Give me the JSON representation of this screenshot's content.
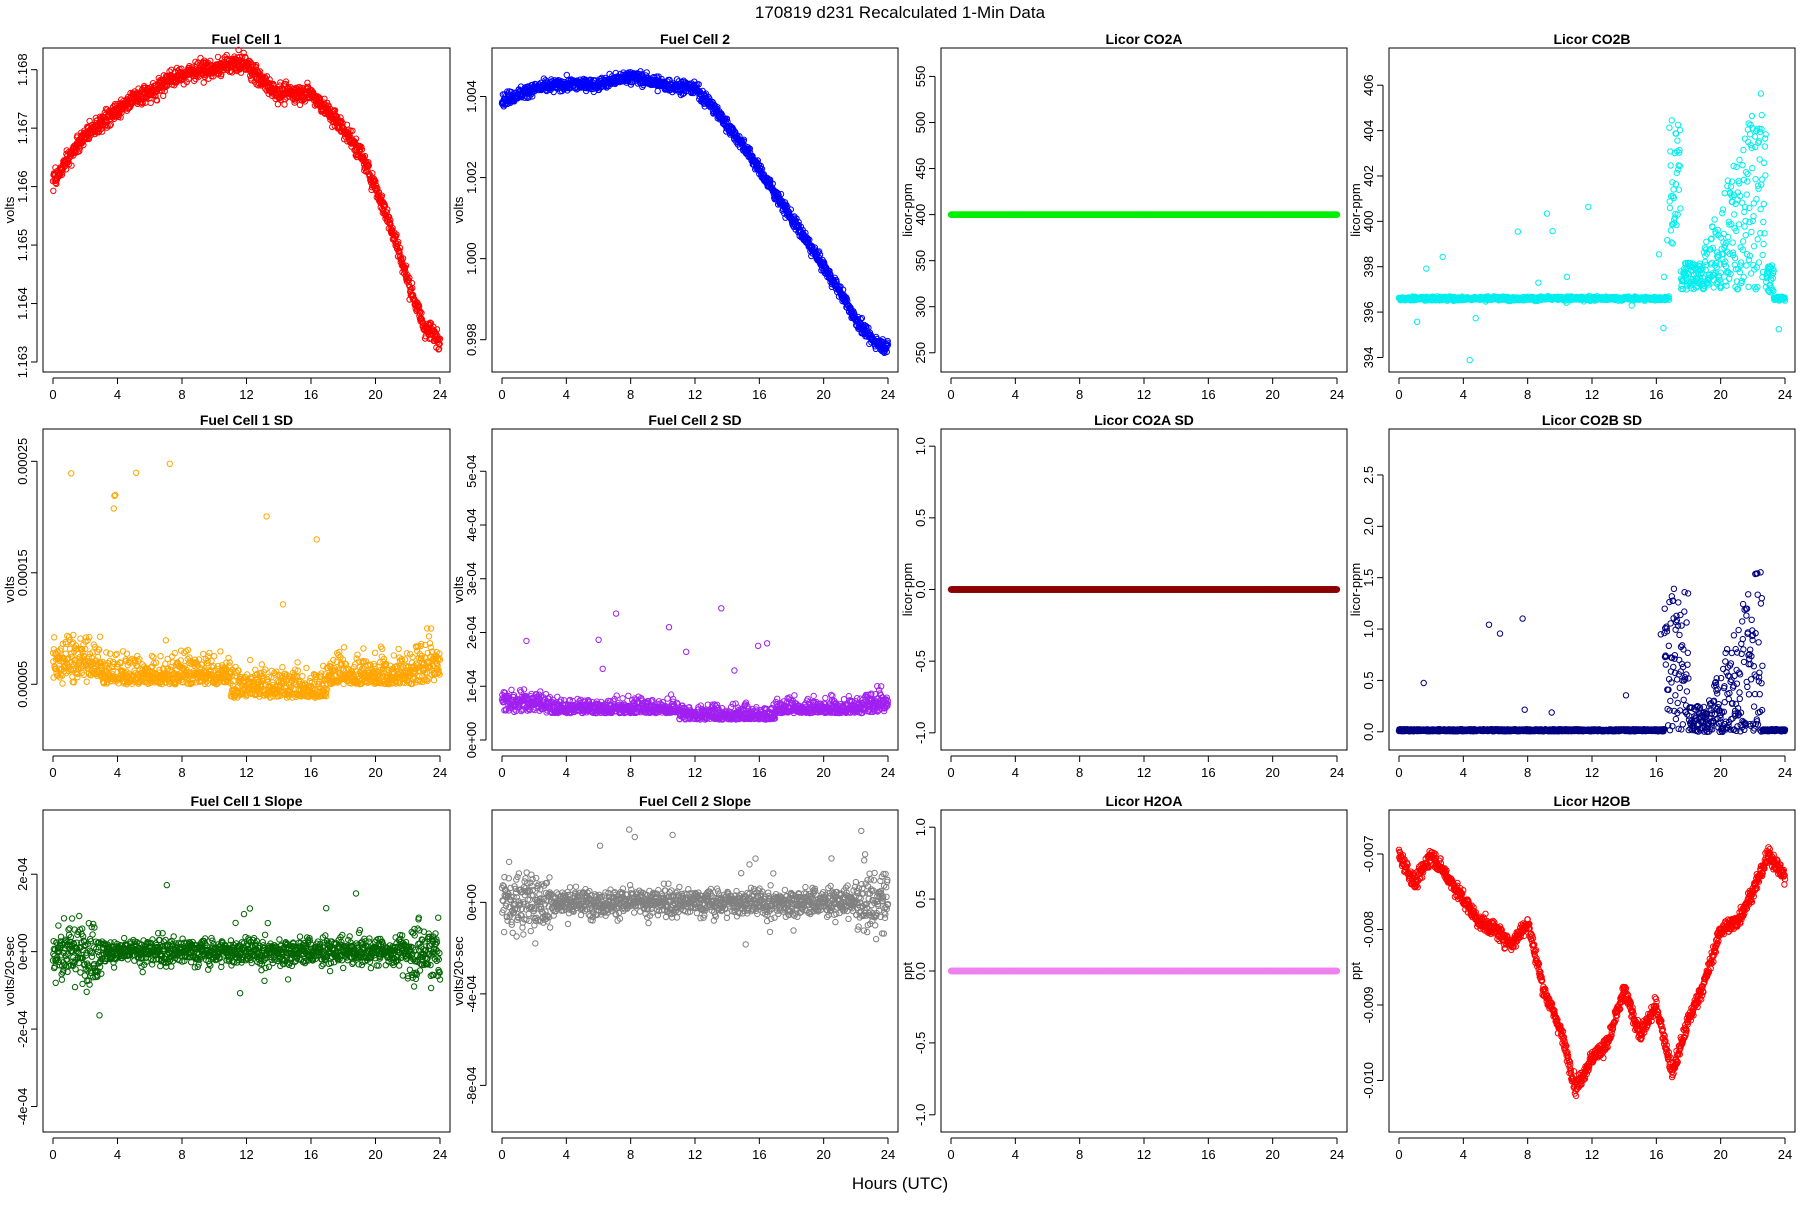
{
  "figure": {
    "title": "170819    d231    Recalculated 1-Min Data",
    "xlabel": "Hours (UTC)"
  },
  "chart_data": [
    {
      "type": "scatter",
      "title": "Fuel Cell 1",
      "ylabel": "volts",
      "color": "#ff0000",
      "xlim": [
        0,
        24
      ],
      "ylim": [
        1.163,
        1.1682
      ],
      "yticks": [
        1.163,
        1.164,
        1.165,
        1.166,
        1.167,
        1.168
      ],
      "ytick_labels": [
        "1.163",
        "1.164",
        "1.165",
        "1.166",
        "1.167",
        "1.168"
      ],
      "shape": {
        "kind": "profile",
        "points": [
          [
            0,
            1.1661
          ],
          [
            1,
            1.1665
          ],
          [
            2,
            1.1669
          ],
          [
            3,
            1.1671
          ],
          [
            4,
            1.1673
          ],
          [
            5,
            1.1675
          ],
          [
            6,
            1.1676
          ],
          [
            7,
            1.1678
          ],
          [
            8,
            1.1679
          ],
          [
            9,
            1.168
          ],
          [
            10,
            1.168
          ],
          [
            11,
            1.1681
          ],
          [
            12,
            1.1681
          ],
          [
            13,
            1.1678
          ],
          [
            14,
            1.1676
          ],
          [
            15,
            1.1676
          ],
          [
            16,
            1.1676
          ],
          [
            17,
            1.1673
          ],
          [
            18,
            1.167
          ],
          [
            19,
            1.1666
          ],
          [
            20,
            1.166
          ],
          [
            21,
            1.1653
          ],
          [
            22,
            1.1644
          ],
          [
            23,
            1.1636
          ],
          [
            24,
            1.1634
          ]
        ],
        "noise": 0.00018,
        "n": 1300
      }
    },
    {
      "type": "scatter",
      "title": "Fuel Cell 2",
      "ylabel": "volts",
      "color": "#0000ff",
      "xlim": [
        0,
        24
      ],
      "ylim": [
        0.99745,
        1.00495
      ],
      "yticks": [
        0.998,
        1.0,
        1.002,
        1.004
      ],
      "ytick_labels": [
        "0.998",
        "1.000",
        "1.002",
        "1.004"
      ],
      "shape": {
        "kind": "profile",
        "points": [
          [
            0,
            1.0039
          ],
          [
            2,
            1.0042
          ],
          [
            4,
            1.0043
          ],
          [
            6,
            1.0043
          ],
          [
            8,
            1.0045
          ],
          [
            10,
            1.0043
          ],
          [
            12,
            1.0042
          ],
          [
            13,
            1.0038
          ],
          [
            14,
            1.0033
          ],
          [
            15,
            1.0028
          ],
          [
            16,
            1.0022
          ],
          [
            17,
            1.0016
          ],
          [
            18,
            1.001
          ],
          [
            19,
            1.0004
          ],
          [
            20,
            0.9998
          ],
          [
            21,
            0.9992
          ],
          [
            22,
            0.9985
          ],
          [
            23,
            0.998
          ],
          [
            24,
            0.9978
          ]
        ],
        "noise": 0.00018,
        "n": 1300
      }
    },
    {
      "type": "scatter",
      "title": "Licor CO2A",
      "ylabel": "licor-ppm",
      "color": "#00ee00",
      "xlim": [
        0,
        24
      ],
      "ylim": [
        240,
        570
      ],
      "yticks": [
        250,
        300,
        350,
        400,
        450,
        500,
        550
      ],
      "ytick_labels": [
        "250",
        "300",
        "350",
        "400",
        "450",
        "500",
        "550"
      ],
      "shape": {
        "kind": "profile",
        "points": [
          [
            0,
            400
          ],
          [
            24,
            400
          ]
        ],
        "noise": 0,
        "n": 1300
      }
    },
    {
      "type": "scatter",
      "title": "Licor CO2B",
      "ylabel": "licor-ppm",
      "color": "#00eeee",
      "xlim": [
        0,
        24
      ],
      "ylim": [
        393.8,
        407.2
      ],
      "yticks": [
        394,
        396,
        398,
        400,
        402,
        404,
        406
      ],
      "ytick_labels": [
        "394",
        "396",
        "398",
        "400",
        "402",
        "404",
        "406"
      ],
      "shape": {
        "kind": "co2b",
        "base": 396.6,
        "noise": 0.06,
        "n": 1300
      }
    },
    {
      "type": "scatter",
      "title": "Fuel Cell 1 SD",
      "ylabel": "volts",
      "color": "#ffa500",
      "xlim": [
        0,
        24
      ],
      "ylim": [
        0.0,
        0.00027
      ],
      "yticks": [
        5e-05,
        0.00015,
        0.00025
      ],
      "ytick_labels": [
        "0.00005",
        "0.00015",
        "0.00025"
      ],
      "shape": {
        "kind": "sd",
        "base": 5e-05,
        "spread": 2.2e-05,
        "edge": 2e-05,
        "floor": 1e-05,
        "n": 1300
      }
    },
    {
      "type": "scatter",
      "title": "Fuel Cell 2 SD",
      "ylabel": "volts",
      "color": "#a020f0",
      "xlim": [
        0,
        24
      ],
      "ylim": [
        0.0,
        0.00056
      ],
      "yticks": [
        0.0,
        0.0001,
        0.0002,
        0.0003,
        0.0004,
        0.0005
      ],
      "ytick_labels": [
        "0e+00",
        "1e-04",
        "2e-04",
        "3e-04",
        "4e-04",
        "5e-04"
      ],
      "shape": {
        "kind": "sd",
        "base": 5e-05,
        "spread": 2.2e-05,
        "edge": 2e-05,
        "floor": 2e-05,
        "n": 1300
      }
    },
    {
      "type": "scatter",
      "title": "Licor CO2A SD",
      "ylabel": "licor-ppm",
      "color": "#8b0000",
      "xlim": [
        0,
        24
      ],
      "ylim": [
        -1.05,
        1.05
      ],
      "yticks": [
        -1.0,
        -0.5,
        0.0,
        0.5,
        1.0
      ],
      "ytick_labels": [
        "-1.0",
        "-0.5",
        "0.0",
        "0.5",
        "1.0"
      ],
      "shape": {
        "kind": "profile",
        "points": [
          [
            0,
            0
          ],
          [
            24,
            0
          ]
        ],
        "noise": 0,
        "n": 1300
      }
    },
    {
      "type": "scatter",
      "title": "Licor CO2B SD",
      "ylabel": "licor-ppm",
      "color": "#000080",
      "xlim": [
        0,
        24
      ],
      "ylim": [
        -0.08,
        2.85
      ],
      "yticks": [
        0.0,
        0.5,
        1.0,
        1.5,
        2.0,
        2.5
      ],
      "ytick_labels": [
        "0.0",
        "0.5",
        "1.0",
        "1.5",
        "2.0",
        "2.5"
      ],
      "shape": {
        "kind": "co2bsd",
        "n": 1300
      }
    },
    {
      "type": "scatter",
      "title": "Fuel Cell 1 Slope",
      "ylabel": "volts/20-sec",
      "color": "#006400",
      "xlim": [
        0,
        24
      ],
      "ylim": [
        -0.00044,
        0.00034
      ],
      "yticks": [
        -0.0004,
        -0.0002,
        0.0,
        0.0002
      ],
      "ytick_labels": [
        "-4e-04",
        "-2e-04",
        "0e+00",
        "2e-04"
      ],
      "shape": {
        "kind": "slope",
        "spread": 3.5e-05,
        "n": 1300
      }
    },
    {
      "type": "scatter",
      "title": "Fuel Cell 2 Slope",
      "ylabel": "volts/20-sec",
      "color": "#808080",
      "xlim": [
        0,
        24
      ],
      "ylim": [
        -0.00096,
        0.00036
      ],
      "yticks": [
        -0.0008,
        -0.0004,
        0.0
      ],
      "ytick_labels": [
        "-8e-04",
        "-4e-04",
        "0e+00"
      ],
      "shape": {
        "kind": "slope",
        "spread": 6e-05,
        "n": 1300
      }
    },
    {
      "type": "scatter",
      "title": "Licor H2OA",
      "ylabel": "ppt",
      "color": "#ee82ee",
      "xlim": [
        0,
        24
      ],
      "ylim": [
        -1.05,
        1.05
      ],
      "yticks": [
        -1.0,
        -0.5,
        0.0,
        0.5,
        1.0
      ],
      "ytick_labels": [
        "-1.0",
        "-0.5",
        "0.0",
        "0.5",
        "1.0"
      ],
      "shape": {
        "kind": "profile",
        "points": [
          [
            0,
            0
          ],
          [
            24,
            0
          ]
        ],
        "noise": 0,
        "n": 1300
      }
    },
    {
      "type": "scatter",
      "title": "Licor H2OB",
      "ylabel": "ppt",
      "color": "#ff0000",
      "xlim": [
        0,
        24
      ],
      "ylim": [
        -0.01055,
        -0.00655
      ],
      "yticks": [
        -0.01,
        -0.009,
        -0.008,
        -0.007
      ],
      "ytick_labels": [
        "-0.010",
        "-0.009",
        "-0.008",
        "-0.007"
      ],
      "shape": {
        "kind": "profile",
        "points": [
          [
            0,
            -0.007
          ],
          [
            1,
            -0.0074
          ],
          [
            2,
            -0.007
          ],
          [
            3,
            -0.0073
          ],
          [
            4,
            -0.0076
          ],
          [
            5,
            -0.0079
          ],
          [
            6,
            -0.008
          ],
          [
            7,
            -0.0082
          ],
          [
            8,
            -0.0079
          ],
          [
            9,
            -0.0088
          ],
          [
            10,
            -0.0093
          ],
          [
            11,
            -0.0101
          ],
          [
            12,
            -0.0097
          ],
          [
            13,
            -0.0095
          ],
          [
            14,
            -0.0088
          ],
          [
            15,
            -0.0094
          ],
          [
            16,
            -0.009
          ],
          [
            17,
            -0.0099
          ],
          [
            18,
            -0.0092
          ],
          [
            19,
            -0.0087
          ],
          [
            20,
            -0.008
          ],
          [
            21,
            -0.0079
          ],
          [
            22,
            -0.0075
          ],
          [
            23,
            -0.007
          ],
          [
            24,
            -0.0073
          ]
        ],
        "noise": 0.00012,
        "n": 1300
      }
    }
  ],
  "xtick_labels": [
    "0",
    "4",
    "8",
    "12",
    "16",
    "20",
    "24"
  ]
}
